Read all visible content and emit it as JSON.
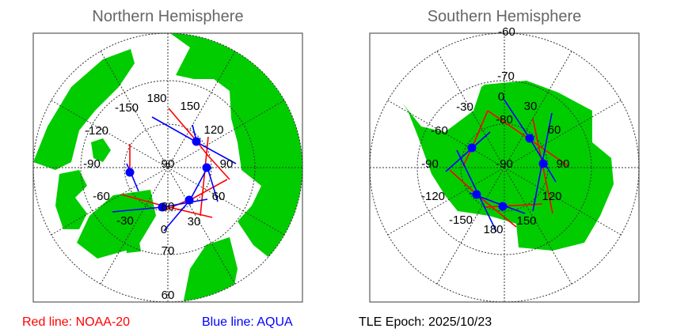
{
  "north": {
    "title": "Northern Hemisphere",
    "lon_labels": [
      "180",
      "150",
      "120",
      "90",
      "60",
      "30",
      "0",
      "-30",
      "-60",
      "-90",
      "-120",
      "-150"
    ],
    "lat_labels": [
      "90",
      "80",
      "70",
      "60"
    ]
  },
  "south": {
    "title": "Southern Hemisphere",
    "lon_labels": [
      "0",
      "30",
      "60",
      "90",
      "120",
      "150",
      "180",
      "-150",
      "-120",
      "-90",
      "-60",
      "-30"
    ],
    "lat_labels": [
      "-90",
      "-80",
      "-70",
      "-60"
    ]
  },
  "legend": {
    "red_label": "Red line: NOAA-20",
    "blue_label": "Blue line: AQUA",
    "epoch": "TLE Epoch: 2025/10/23"
  },
  "colors": {
    "land": "#00CC00",
    "noaa20": "#FF0000",
    "aqua": "#0000FF",
    "title": "#666666"
  }
}
